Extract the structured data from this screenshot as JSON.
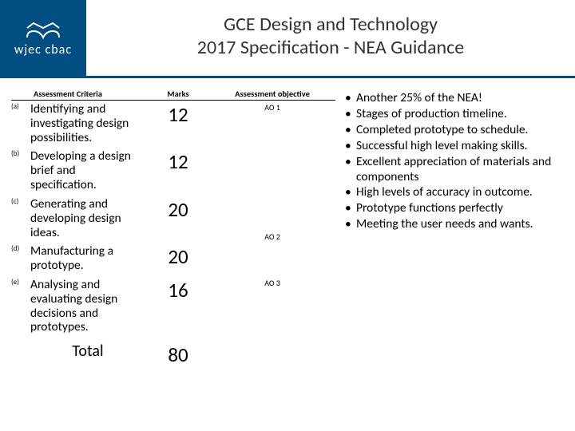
{
  "header": {
    "logo_text": "wjec cbac",
    "title_line1": "GCE Design and Technology",
    "title_line2": "2017 Specification  - NEA Guidance"
  },
  "colors": {
    "brand": "#004e82",
    "text": "#333333",
    "white": "#ffffff"
  },
  "table": {
    "headers": {
      "criteria": "Assessment Criteria",
      "marks": "Marks",
      "objective": "Assessment objective"
    },
    "rows": [
      {
        "label": "(a)",
        "desc": "Identifying and investigating design possibilities.",
        "marks": "12",
        "ao": "AO 1",
        "ao_rowspan": 2
      },
      {
        "label": "(b)",
        "desc": "Developing a design brief and specification.",
        "marks": "12"
      },
      {
        "label": "(c)",
        "desc": "Generating and developing design ideas.",
        "marks": "20",
        "ao": "AO 2",
        "ao_rowspan": 2,
        "ao_mid": true
      },
      {
        "label": "(d)",
        "desc": "Manufacturing a prototype.",
        "marks": "20"
      },
      {
        "label": "(e)",
        "desc": "Analysing and evaluating design decisions and prototypes.",
        "marks": "16",
        "ao": "AO 3"
      }
    ],
    "total": {
      "label": "Total",
      "marks": "80"
    }
  },
  "bullets": [
    "Another 25% of the NEA!",
    "Stages of production timeline.",
    "Completed prototype to schedule.",
    "Successful high level making skills.",
    "Excellent appreciation of materials and components",
    "High levels of accuracy in outcome.",
    "Prototype functions perfectly",
    "Meeting the user needs and wants."
  ]
}
